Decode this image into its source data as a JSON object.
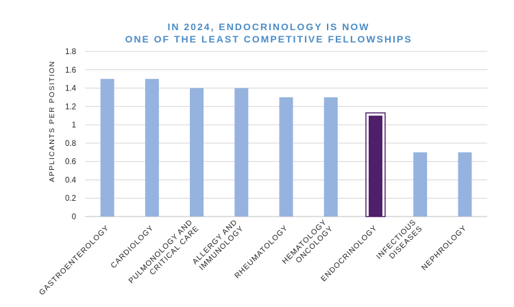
{
  "chart_data": {
    "type": "bar",
    "title": [
      "IN 2024, ENDOCRINOLOGY IS NOW",
      "ONE OF THE LEAST COMPETITIVE FELLOWSHIPS"
    ],
    "xlabel": "",
    "ylabel": "APPLICANTS PER POSITION",
    "ylim": [
      0,
      1.8
    ],
    "yticks": [
      "0",
      "0.2",
      "0.4",
      "0.6",
      "0.8",
      "1",
      "1.2",
      "1.4",
      "1.6",
      "1.8"
    ],
    "grid": true,
    "categories": [
      [
        "GASTROENTEROLOGY"
      ],
      [
        "CARDIOLOGY"
      ],
      [
        "PULMONOLOGY AND",
        "CRITICAL CARE"
      ],
      [
        "ALLERGY AND",
        "IMMUNOLOGY"
      ],
      [
        "RHEUMATOLOGY"
      ],
      [
        "HEMATOLOGY",
        "ONCOLOGY"
      ],
      [
        "ENDOCRINOLOGY"
      ],
      [
        "INFECTIOUS",
        "DISEASES"
      ],
      [
        "NEPHROLOGY"
      ]
    ],
    "values": [
      1.5,
      1.5,
      1.4,
      1.4,
      1.3,
      1.3,
      1.1,
      0.7,
      0.7
    ],
    "highlight_index": 6,
    "colors": {
      "bar": "#95b3de",
      "highlight": "#4f1f6a",
      "title": "#4a8cc6"
    }
  }
}
